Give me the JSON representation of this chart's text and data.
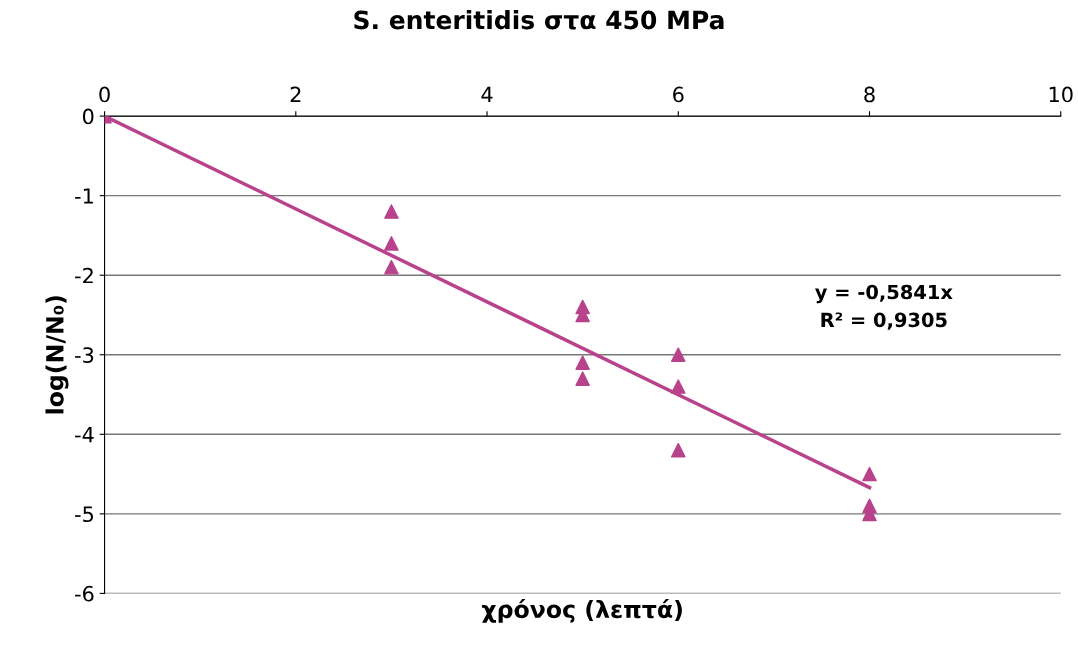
{
  "chart_data": {
    "type": "scatter",
    "title": "S. enteritidis στα 450 MPa",
    "xlabel": "χρόνος (λεπτά)",
    "ylabel": "log(N/N₀)",
    "xlim": [
      0,
      10
    ],
    "xticks": [
      0,
      2,
      4,
      6,
      8,
      10
    ],
    "ylim": [
      -6,
      0
    ],
    "yticks": [
      -6,
      -5,
      -4,
      -3,
      -2,
      -1,
      0
    ],
    "grid": "y",
    "legend": false,
    "series": [
      {
        "marker": "triangle",
        "color": "#b8428c",
        "x": [
          0,
          3,
          3,
          3,
          5,
          5,
          5,
          5,
          6,
          6,
          6,
          8,
          8,
          8
        ],
        "values": [
          0,
          -1.2,
          -1.6,
          -1.9,
          -2.4,
          -2.5,
          -3.1,
          -3.3,
          -3.0,
          -3.4,
          -4.2,
          -4.5,
          -4.9,
          -5.0
        ]
      },
      {
        "type": "line",
        "marker": "none",
        "color": "#b8428c",
        "x": [
          0,
          8
        ],
        "values": [
          0,
          -4.67
        ]
      }
    ],
    "annotations": [
      "y = -0,5841x",
      "R² = 0,9305"
    ]
  }
}
